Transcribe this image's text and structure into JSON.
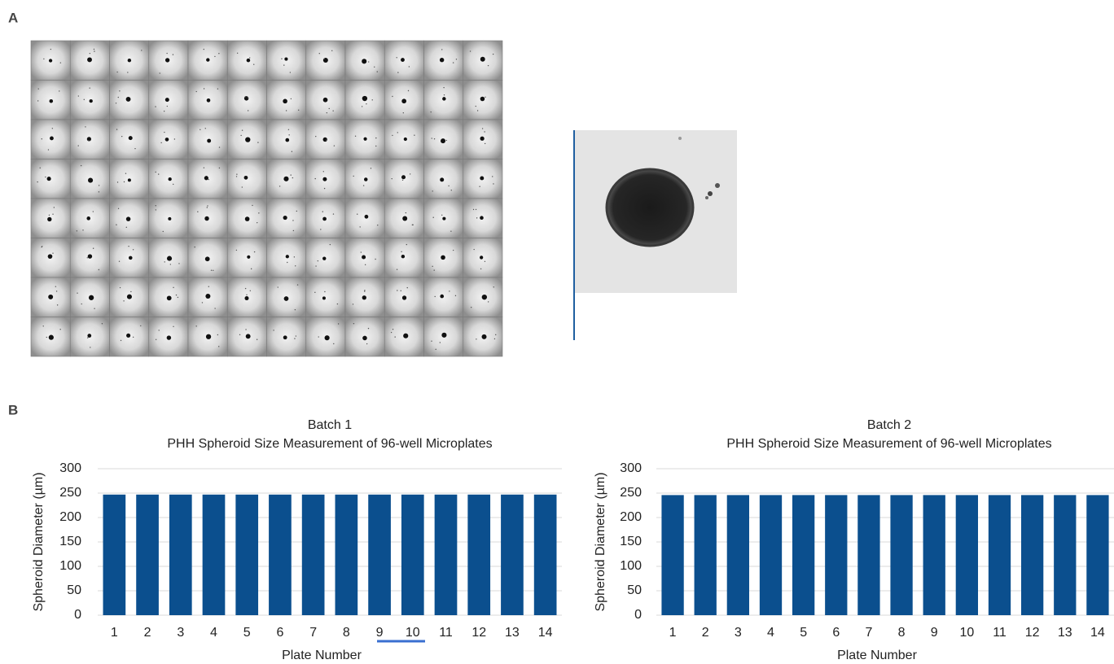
{
  "panels": [
    "A",
    "B"
  ],
  "chart_data": [
    {
      "type": "bar",
      "title": "Batch 1",
      "subtitle": "PHH  Spheroid  Size  Measurement  of  96-well  Microplates",
      "x_label": "Plate Number",
      "y_label": "Spheroid Diameter (µm)",
      "categories": [
        "1",
        "2",
        "3",
        "4",
        "5",
        "6",
        "7",
        "8",
        "9",
        "10",
        "11",
        "12",
        "13",
        "14"
      ],
      "values": [
        247,
        247,
        247,
        247,
        247,
        247,
        247,
        247,
        247,
        247,
        247,
        247,
        247,
        247
      ],
      "color": "#0b4f8e",
      "ylim": [
        0,
        300
      ],
      "yticks": [
        0,
        50,
        100,
        150,
        200,
        250,
        300
      ],
      "grid": true
    },
    {
      "type": "bar",
      "title": "Batch 2",
      "subtitle": "PHH  Spheroid  Size  Measurement  of  96-well  Microplates",
      "x_label": "Plate Number",
      "y_label": "Spheroid Diameter (µm)",
      "categories": [
        "1",
        "2",
        "3",
        "4",
        "5",
        "6",
        "7",
        "8",
        "9",
        "10",
        "11",
        "12",
        "13",
        "14"
      ],
      "values": [
        246,
        246,
        246,
        246,
        246,
        246,
        246,
        246,
        246,
        246,
        246,
        246,
        246,
        246
      ],
      "color": "#0b4f8e",
      "ylim": [
        0,
        300
      ],
      "yticks": [
        0,
        50,
        100,
        150,
        200,
        250,
        300
      ],
      "grid": true
    }
  ]
}
